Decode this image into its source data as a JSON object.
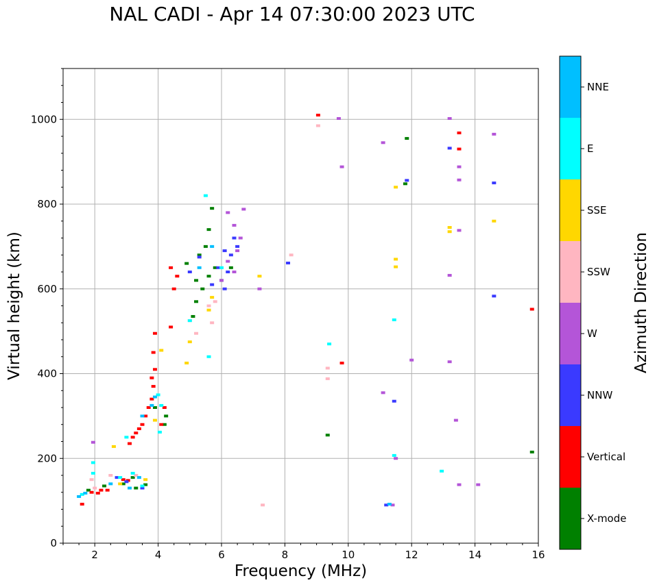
{
  "chart_data": {
    "type": "scatter",
    "title": "NAL CADI - Apr 14 07:30:00 2023 UTC",
    "xlabel": "Frequency (MHz)",
    "ylabel": "Virtual height (km)",
    "xlim": [
      1,
      16
    ],
    "ylim": [
      0,
      1120
    ],
    "xticks": [
      2,
      4,
      6,
      8,
      10,
      12,
      14,
      16
    ],
    "yticks": [
      0,
      200,
      400,
      600,
      800,
      1000
    ],
    "grid": true,
    "colorbar": {
      "label": "Azimuth Direction",
      "categories": [
        {
          "name": "X-mode",
          "color": "#008000"
        },
        {
          "name": "Vertical",
          "color": "#ff0000"
        },
        {
          "name": "NNW",
          "color": "#3a3aff"
        },
        {
          "name": "W",
          "color": "#b455d8"
        },
        {
          "name": "SSW",
          "color": "#ffb6c1"
        },
        {
          "name": "SSE",
          "color": "#ffd700"
        },
        {
          "name": "E",
          "color": "#00ffff"
        },
        {
          "name": "NNE",
          "color": "#00bfff"
        }
      ]
    },
    "series": [
      {
        "name": "X-mode",
        "points": [
          [
            1.8,
            125
          ],
          [
            2.3,
            135
          ],
          [
            2.9,
            140
          ],
          [
            3.3,
            130
          ],
          [
            3.6,
            138
          ],
          [
            3.2,
            155
          ],
          [
            4.2,
            280
          ],
          [
            4.25,
            300
          ],
          [
            3.9,
            320
          ],
          [
            5.1,
            535
          ],
          [
            5.2,
            570
          ],
          [
            5.4,
            600
          ],
          [
            5.6,
            630
          ],
          [
            5.8,
            650
          ],
          [
            5.3,
            680
          ],
          [
            5.5,
            700
          ],
          [
            5.6,
            740
          ],
          [
            5.7,
            790
          ],
          [
            6.0,
            620
          ],
          [
            6.3,
            650
          ],
          [
            5.2,
            620
          ],
          [
            9.35,
            255
          ],
          [
            15.8,
            215
          ],
          [
            11.8,
            848
          ],
          [
            11.85,
            955
          ],
          [
            4.9,
            660
          ]
        ]
      },
      {
        "name": "Vertical",
        "points": [
          [
            1.6,
            92
          ],
          [
            1.9,
            120
          ],
          [
            2.2,
            125
          ],
          [
            2.4,
            125
          ],
          [
            2.9,
            150
          ],
          [
            3.1,
            235
          ],
          [
            3.2,
            250
          ],
          [
            3.3,
            260
          ],
          [
            3.4,
            270
          ],
          [
            3.5,
            280
          ],
          [
            3.6,
            300
          ],
          [
            3.7,
            320
          ],
          [
            3.8,
            340
          ],
          [
            3.85,
            370
          ],
          [
            3.8,
            390
          ],
          [
            3.9,
            410
          ],
          [
            3.85,
            450
          ],
          [
            3.9,
            495
          ],
          [
            4.1,
            280
          ],
          [
            4.2,
            320
          ],
          [
            4.5,
            600
          ],
          [
            4.4,
            650
          ],
          [
            4.6,
            630
          ],
          [
            9.05,
            1010
          ],
          [
            13.5,
            930
          ],
          [
            13.5,
            968
          ],
          [
            15.8,
            552
          ],
          [
            9.8,
            425
          ],
          [
            4.4,
            510
          ],
          [
            2.1,
            118
          ],
          [
            3.05,
            148
          ]
        ]
      },
      {
        "name": "NNW",
        "points": [
          [
            2.7,
            155
          ],
          [
            3.0,
            145
          ],
          [
            3.5,
            130
          ],
          [
            5.7,
            610
          ],
          [
            5.9,
            650
          ],
          [
            6.1,
            600
          ],
          [
            6.2,
            640
          ],
          [
            6.3,
            680
          ],
          [
            6.4,
            720
          ],
          [
            6.5,
            700
          ],
          [
            6.1,
            690
          ],
          [
            14.6,
            850
          ],
          [
            14.6,
            583
          ],
          [
            11.2,
            90
          ],
          [
            11.45,
            335
          ],
          [
            11.85,
            856
          ],
          [
            13.2,
            932
          ],
          [
            5.3,
            675
          ],
          [
            5.0,
            640
          ],
          [
            8.1,
            661
          ]
        ]
      },
      {
        "name": "W",
        "points": [
          [
            1.95,
            238
          ],
          [
            6.0,
            620
          ],
          [
            6.2,
            665
          ],
          [
            6.4,
            640
          ],
          [
            6.5,
            690
          ],
          [
            6.6,
            720
          ],
          [
            6.7,
            788
          ],
          [
            6.2,
            780
          ],
          [
            6.4,
            750
          ],
          [
            13.2,
            632
          ],
          [
            13.5,
            738
          ],
          [
            13.5,
            857
          ],
          [
            13.5,
            888
          ],
          [
            13.2,
            1002
          ],
          [
            14.6,
            965
          ],
          [
            11.1,
            945
          ],
          [
            11.1,
            355
          ],
          [
            11.5,
            200
          ],
          [
            11.4,
            90
          ],
          [
            13.4,
            290
          ],
          [
            13.5,
            138
          ],
          [
            14.1,
            138
          ],
          [
            13.2,
            428
          ],
          [
            12.0,
            432
          ],
          [
            9.7,
            1002
          ],
          [
            9.8,
            888
          ],
          [
            7.2,
            600
          ]
        ]
      },
      {
        "name": "SSW",
        "points": [
          [
            2.0,
            130
          ],
          [
            2.5,
            160
          ],
          [
            3.3,
            160
          ],
          [
            5.0,
            525
          ],
          [
            5.2,
            495
          ],
          [
            5.6,
            560
          ],
          [
            5.7,
            520
          ],
          [
            9.05,
            985
          ],
          [
            9.35,
            413
          ],
          [
            9.35,
            388
          ],
          [
            7.3,
            90
          ],
          [
            8.2,
            680
          ],
          [
            5.8,
            570
          ],
          [
            1.9,
            150
          ]
        ]
      },
      {
        "name": "SSE",
        "points": [
          [
            2.6,
            228
          ],
          [
            2.8,
            140
          ],
          [
            3.9,
            290
          ],
          [
            4.1,
            455
          ],
          [
            4.9,
            425
          ],
          [
            5.0,
            475
          ],
          [
            5.6,
            550
          ],
          [
            5.7,
            580
          ],
          [
            7.2,
            630
          ],
          [
            11.5,
            670
          ],
          [
            11.5,
            652
          ],
          [
            11.5,
            840
          ],
          [
            13.2,
            735
          ],
          [
            13.2,
            745
          ],
          [
            14.6,
            760
          ],
          [
            3.6,
            150
          ]
        ]
      },
      {
        "name": "E",
        "points": [
          [
            1.6,
            115
          ],
          [
            1.95,
            190
          ],
          [
            1.95,
            165
          ],
          [
            2.8,
            155
          ],
          [
            3.2,
            165
          ],
          [
            3.5,
            135
          ],
          [
            4.0,
            350
          ],
          [
            4.05,
            262
          ],
          [
            5.0,
            525
          ],
          [
            5.5,
            820
          ],
          [
            5.6,
            440
          ],
          [
            6.0,
            650
          ],
          [
            9.4,
            470
          ],
          [
            11.45,
            527
          ],
          [
            11.45,
            207
          ],
          [
            12.95,
            170
          ],
          [
            4.1,
            325
          ],
          [
            3.0,
            250
          ]
        ]
      },
      {
        "name": "NNE",
        "points": [
          [
            1.5,
            110
          ],
          [
            1.7,
            118
          ],
          [
            2.5,
            140
          ],
          [
            3.1,
            130
          ],
          [
            3.4,
            155
          ],
          [
            3.8,
            325
          ],
          [
            3.9,
            345
          ],
          [
            5.3,
            650
          ],
          [
            5.7,
            700
          ],
          [
            11.3,
            92
          ],
          [
            3.5,
            300
          ]
        ]
      }
    ]
  }
}
